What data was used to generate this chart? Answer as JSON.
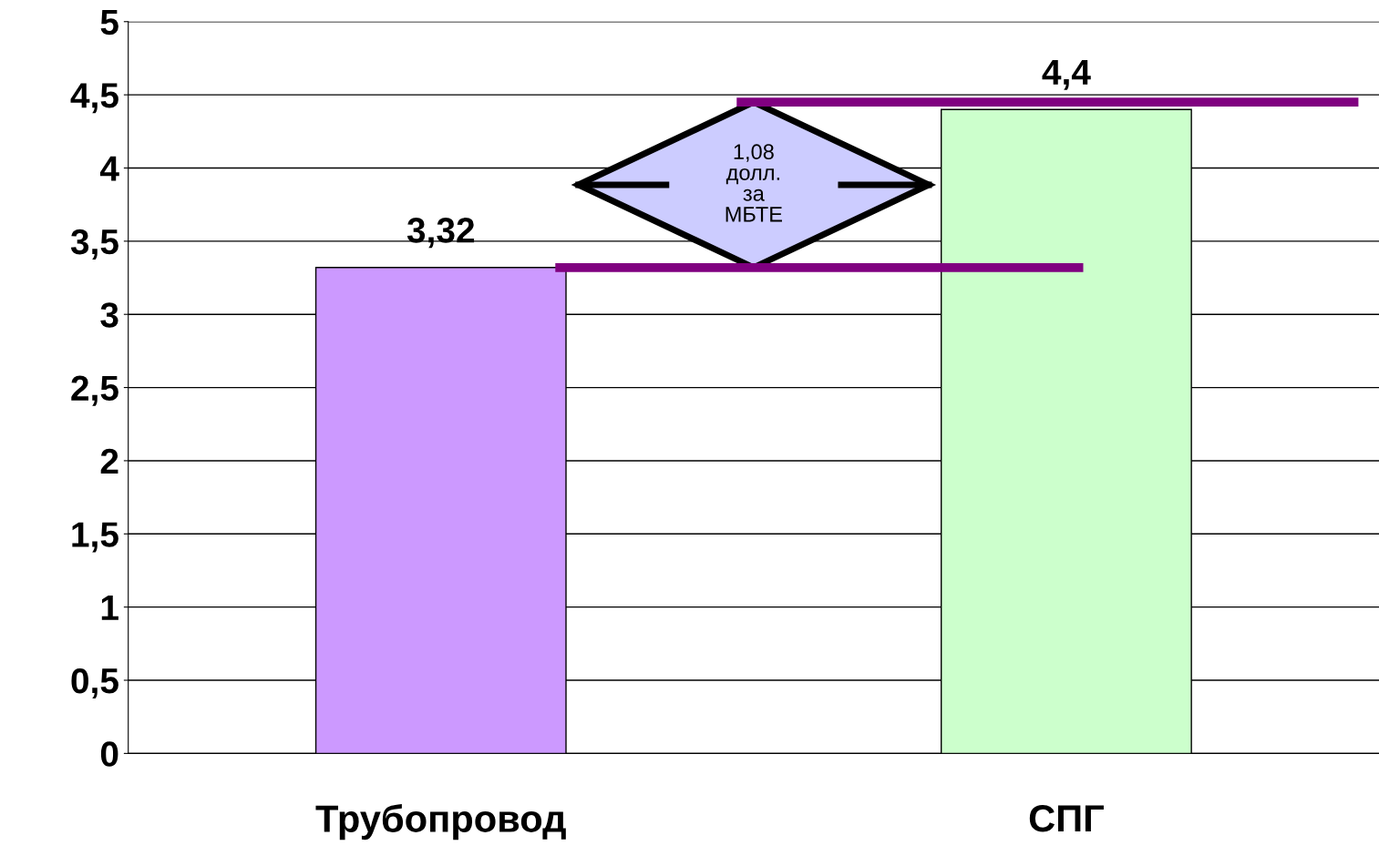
{
  "chart_data": {
    "type": "bar",
    "categories": [
      "Трубопровод",
      "СПГ"
    ],
    "values": [
      3.32,
      4.4
    ],
    "colors": [
      "#cc99ff",
      "#ccffcc"
    ],
    "value_labels": [
      "3,32",
      "4,4"
    ],
    "ylim": [
      0,
      5
    ],
    "yticks": [
      0,
      {
        "value": 0.5,
        "label": "0,5"
      },
      1,
      {
        "value": 1.5,
        "label": "1,5"
      },
      2,
      {
        "value": 2.5,
        "label": "2,5"
      },
      3,
      {
        "value": 3.5,
        "label": "3,5"
      },
      4,
      {
        "value": 4.5,
        "label": "4,5"
      },
      5
    ],
    "grid": "y",
    "ref_lines": [
      {
        "axis": "y",
        "value": 3.32,
        "color": "#800080"
      },
      {
        "axis": "y",
        "value": 4.45,
        "color": "#800080"
      }
    ],
    "annotations": [
      "1,08\nдолл.\nза\nМБТЕ"
    ]
  }
}
